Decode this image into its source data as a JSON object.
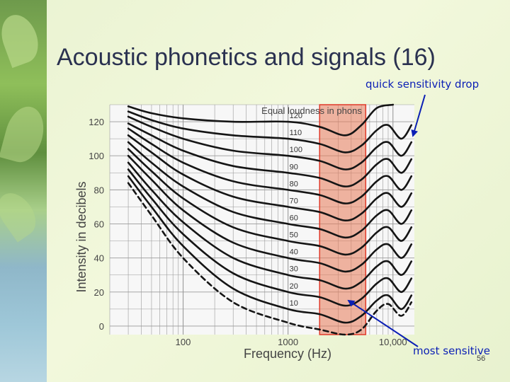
{
  "slide": {
    "title": "Acoustic phonetics and signals (16)",
    "page_number": "56",
    "annotation_top": "quick sensitivity drop",
    "annotation_bottom": "most sensitive"
  },
  "colors": {
    "title": "#2a3150",
    "annotation": "#0b1fb5",
    "curve": "#151515",
    "grid": "#9a9a9a",
    "highlight_fill": "#e87a58",
    "highlight_stroke": "#e03a2a",
    "plot_background": "#f7f7f7"
  },
  "chart_data": {
    "type": "line",
    "title": "Equal loudness in phons",
    "xlabel": "Frequency (Hz)",
    "ylabel": "Intensity in decibels",
    "xscale": "log",
    "xlim": [
      20,
      16000
    ],
    "ylim": [
      -5,
      130
    ],
    "grid": true,
    "x_ticks": [
      {
        "value": 100,
        "label": "100"
      },
      {
        "value": 1000,
        "label": "1000"
      },
      {
        "value": 10000,
        "label": "10,000"
      }
    ],
    "y_ticks": [
      {
        "value": 0,
        "label": "0"
      },
      {
        "value": 20,
        "label": "20"
      },
      {
        "value": 40,
        "label": "40"
      },
      {
        "value": 60,
        "label": "60"
      },
      {
        "value": 80,
        "label": "80"
      },
      {
        "value": 100,
        "label": "100"
      },
      {
        "value": 120,
        "label": "120"
      }
    ],
    "highlight_band_hz": [
      2000,
      5500
    ],
    "series": [
      {
        "name": "120",
        "points": [
          [
            30,
            129
          ],
          [
            50,
            125
          ],
          [
            100,
            122
          ],
          [
            300,
            120
          ],
          [
            1000,
            120
          ],
          [
            2000,
            117
          ],
          [
            3500,
            112
          ],
          [
            5000,
            118
          ],
          [
            7000,
            128
          ],
          [
            10000,
            130
          ]
        ]
      },
      {
        "name": "110",
        "points": [
          [
            30,
            126
          ],
          [
            50,
            121
          ],
          [
            100,
            116
          ],
          [
            300,
            112
          ],
          [
            1000,
            110
          ],
          [
            2000,
            107
          ],
          [
            3500,
            102
          ],
          [
            5000,
            106
          ],
          [
            7000,
            115
          ],
          [
            9000,
            118
          ],
          [
            12000,
            110
          ],
          [
            15000,
            118
          ]
        ]
      },
      {
        "name": "100",
        "points": [
          [
            30,
            123
          ],
          [
            50,
            117
          ],
          [
            100,
            110
          ],
          [
            300,
            103
          ],
          [
            1000,
            100
          ],
          [
            2000,
            97
          ],
          [
            3500,
            92
          ],
          [
            5000,
            96
          ],
          [
            7000,
            105
          ],
          [
            9000,
            108
          ],
          [
            12000,
            100
          ],
          [
            15000,
            108
          ]
        ]
      },
      {
        "name": "90",
        "points": [
          [
            30,
            119
          ],
          [
            50,
            112
          ],
          [
            100,
            103
          ],
          [
            300,
            94
          ],
          [
            1000,
            90
          ],
          [
            2000,
            87
          ],
          [
            3500,
            82
          ],
          [
            5000,
            86
          ],
          [
            7000,
            95
          ],
          [
            9000,
            98
          ],
          [
            12000,
            90
          ],
          [
            15000,
            98
          ]
        ]
      },
      {
        "name": "80",
        "points": [
          [
            30,
            116
          ],
          [
            50,
            107
          ],
          [
            100,
            96
          ],
          [
            300,
            85
          ],
          [
            1000,
            80
          ],
          [
            2000,
            77
          ],
          [
            3500,
            72
          ],
          [
            5000,
            76
          ],
          [
            7000,
            85
          ],
          [
            9000,
            88
          ],
          [
            12000,
            80
          ],
          [
            15000,
            88
          ]
        ]
      },
      {
        "name": "70",
        "points": [
          [
            30,
            112
          ],
          [
            50,
            102
          ],
          [
            100,
            89
          ],
          [
            300,
            76
          ],
          [
            1000,
            70
          ],
          [
            2000,
            67
          ],
          [
            3500,
            62
          ],
          [
            5000,
            66
          ],
          [
            7000,
            75
          ],
          [
            9000,
            78
          ],
          [
            12000,
            70
          ],
          [
            15000,
            78
          ]
        ]
      },
      {
        "name": "60",
        "points": [
          [
            30,
            108
          ],
          [
            50,
            96
          ],
          [
            100,
            82
          ],
          [
            300,
            67
          ],
          [
            1000,
            60
          ],
          [
            2000,
            57
          ],
          [
            3500,
            52
          ],
          [
            5000,
            56
          ],
          [
            7000,
            65
          ],
          [
            9000,
            68
          ],
          [
            12000,
            60
          ],
          [
            15000,
            68
          ]
        ]
      },
      {
        "name": "50",
        "points": [
          [
            30,
            104
          ],
          [
            50,
            91
          ],
          [
            100,
            75
          ],
          [
            300,
            58
          ],
          [
            1000,
            50
          ],
          [
            2000,
            47
          ],
          [
            3500,
            42
          ],
          [
            5000,
            46
          ],
          [
            7000,
            55
          ],
          [
            9000,
            58
          ],
          [
            12000,
            50
          ],
          [
            15000,
            58
          ]
        ]
      },
      {
        "name": "40",
        "points": [
          [
            30,
            100
          ],
          [
            50,
            86
          ],
          [
            100,
            68
          ],
          [
            300,
            49
          ],
          [
            1000,
            40
          ],
          [
            2000,
            37
          ],
          [
            3500,
            32
          ],
          [
            5000,
            36
          ],
          [
            7000,
            45
          ],
          [
            9000,
            48
          ],
          [
            12000,
            40
          ],
          [
            15000,
            48
          ]
        ]
      },
      {
        "name": "30",
        "points": [
          [
            30,
            96
          ],
          [
            50,
            80
          ],
          [
            100,
            61
          ],
          [
            300,
            40
          ],
          [
            1000,
            30
          ],
          [
            2000,
            27
          ],
          [
            3500,
            22
          ],
          [
            5000,
            26
          ],
          [
            7000,
            35
          ],
          [
            9000,
            38
          ],
          [
            12000,
            30
          ],
          [
            15000,
            38
          ]
        ]
      },
      {
        "name": "20",
        "points": [
          [
            30,
            92
          ],
          [
            50,
            75
          ],
          [
            100,
            54
          ],
          [
            300,
            31
          ],
          [
            1000,
            20
          ],
          [
            2000,
            17
          ],
          [
            3500,
            12
          ],
          [
            5000,
            16
          ],
          [
            7000,
            25
          ],
          [
            9000,
            28
          ],
          [
            12000,
            20
          ],
          [
            15000,
            28
          ]
        ]
      },
      {
        "name": "10",
        "points": [
          [
            30,
            88
          ],
          [
            50,
            70
          ],
          [
            100,
            47
          ],
          [
            300,
            22
          ],
          [
            1000,
            10
          ],
          [
            2000,
            7
          ],
          [
            3500,
            2
          ],
          [
            5000,
            6
          ],
          [
            7000,
            15
          ],
          [
            9000,
            18
          ],
          [
            12000,
            10
          ],
          [
            15000,
            18
          ]
        ]
      },
      {
        "name": "",
        "dashed": true,
        "points": [
          [
            30,
            84
          ],
          [
            50,
            65
          ],
          [
            100,
            40
          ],
          [
            300,
            14
          ],
          [
            1000,
            2
          ],
          [
            2000,
            -2
          ],
          [
            3500,
            -5
          ],
          [
            5000,
            -2
          ],
          [
            7000,
            9
          ],
          [
            9000,
            13
          ],
          [
            12000,
            6
          ],
          [
            15000,
            14
          ]
        ]
      }
    ]
  }
}
